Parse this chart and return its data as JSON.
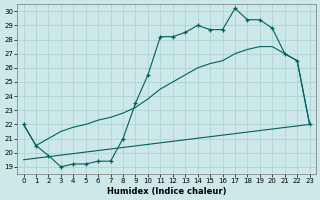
{
  "xlabel": "Humidex (Indice chaleur)",
  "background_color": "#cce8e8",
  "grid_color": "#aacfcf",
  "line_color": "#006060",
  "xlim": [
    -0.5,
    23.5
  ],
  "ylim": [
    18.5,
    30.5
  ],
  "yticks": [
    19,
    20,
    21,
    22,
    23,
    24,
    25,
    26,
    27,
    28,
    29,
    30
  ],
  "xticks": [
    0,
    1,
    2,
    3,
    4,
    5,
    6,
    7,
    8,
    9,
    10,
    11,
    12,
    13,
    14,
    15,
    16,
    17,
    18,
    19,
    20,
    21,
    22,
    23
  ],
  "line1_x": [
    0,
    1,
    2,
    3,
    4,
    5,
    6,
    7,
    8,
    9,
    10,
    11,
    12,
    13,
    14,
    15,
    16,
    17,
    18,
    19,
    20,
    21,
    22,
    23
  ],
  "line1_y": [
    22.0,
    20.5,
    19.8,
    19.0,
    19.2,
    19.2,
    19.4,
    19.4,
    21.0,
    23.5,
    25.5,
    28.2,
    28.2,
    28.5,
    29.0,
    28.7,
    28.7,
    30.2,
    29.4,
    29.4,
    28.8,
    27.0,
    26.5,
    22.0
  ],
  "line2_x": [
    0,
    1,
    2,
    3,
    4,
    5,
    6,
    7,
    8,
    9,
    10,
    11,
    12,
    13,
    14,
    15,
    16,
    17,
    18,
    19,
    20,
    21,
    22,
    23
  ],
  "line2_y": [
    22.0,
    20.5,
    21.0,
    21.5,
    21.8,
    22.0,
    22.3,
    22.5,
    22.8,
    23.2,
    23.8,
    24.5,
    25.0,
    25.5,
    26.0,
    26.3,
    26.5,
    27.0,
    27.3,
    27.5,
    27.5,
    27.0,
    26.5,
    22.0
  ],
  "line3_x": [
    0,
    23
  ],
  "line3_y": [
    19.5,
    22.0
  ]
}
